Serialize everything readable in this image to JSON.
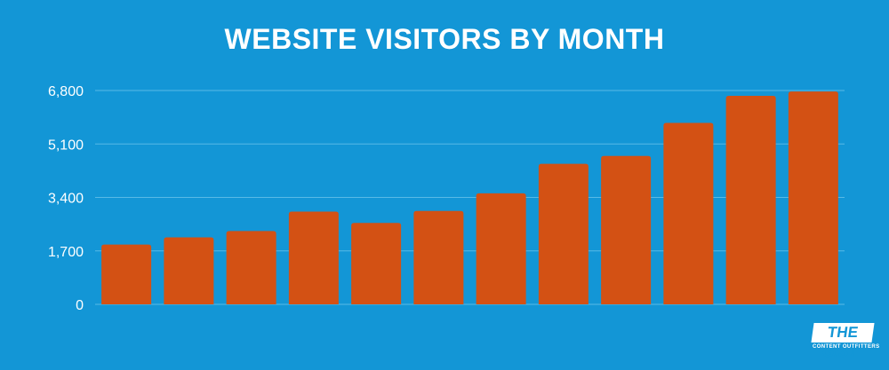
{
  "colors": {
    "background": "#1396d6",
    "bar": "#d35114",
    "gridline": "#58b9e6",
    "text": "#ffffff"
  },
  "logo": {
    "main_text": "THE GIST",
    "sub_text": "CONTENT OUTFITTERS"
  },
  "chart_data": {
    "type": "bar",
    "title": "WEBSITE VISITORS BY MONTH",
    "xlabel": "",
    "ylabel": "",
    "categories": [
      "",
      "",
      "",
      "",
      "",
      "",
      "",
      "",
      "",
      "",
      "",
      ""
    ],
    "values": [
      1900,
      2130,
      2330,
      2950,
      2590,
      2970,
      3530,
      4470,
      4720,
      5770,
      6630,
      6770
    ],
    "yticks": [
      0,
      1700,
      3400,
      5100,
      6800
    ],
    "ytick_labels": [
      "0",
      "1,700",
      "3,400",
      "5,100",
      "6,800"
    ],
    "ylim": [
      0,
      6800
    ],
    "grid": true,
    "legend": "none"
  }
}
